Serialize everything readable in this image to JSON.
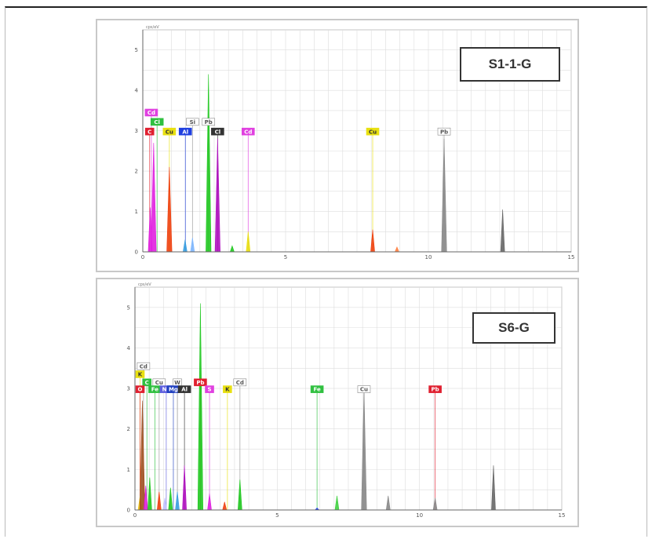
{
  "chart_data": [
    {
      "type": "area",
      "sample_label": "S1-1-G",
      "y_unit_label": "cps/eV",
      "xlim": [
        0,
        15
      ],
      "ylim": [
        0,
        5.5
      ],
      "x_ticks": [
        "0",
        "5",
        "10",
        "15"
      ],
      "y_ticks": [
        "0",
        "1",
        "2",
        "3",
        "4",
        "5"
      ],
      "grid": true,
      "peaks": [
        {
          "x": 0.26,
          "y": 1.1,
          "color": "#e020e0"
        },
        {
          "x": 0.38,
          "y": 2.7,
          "color": "#e020e0"
        },
        {
          "x": 0.93,
          "y": 2.1,
          "color": "#ee4010"
        },
        {
          "x": 1.48,
          "y": 0.3,
          "color": "#3aa0e0"
        },
        {
          "x": 1.74,
          "y": 0.35,
          "color": "#7fb8ff"
        },
        {
          "x": 2.3,
          "y": 4.4,
          "color": "#20c820"
        },
        {
          "x": 2.62,
          "y": 2.8,
          "color": "#b010c0"
        },
        {
          "x": 3.13,
          "y": 0.15,
          "color": "#20c820"
        },
        {
          "x": 3.69,
          "y": 0.5,
          "color": "#e8e010"
        },
        {
          "x": 8.05,
          "y": 0.55,
          "color": "#ee4010"
        },
        {
          "x": 8.9,
          "y": 0.12,
          "color": "#ff8040"
        },
        {
          "x": 10.55,
          "y": 2.8,
          "color": "#888888"
        },
        {
          "x": 12.6,
          "y": 1.05,
          "color": "#666666"
        }
      ],
      "markers": [
        {
          "label": "Cd",
          "x": 0.3,
          "y": 3.45,
          "bg": "#e040e0",
          "fg": "#ffffff"
        },
        {
          "label": "Cl",
          "x": 0.5,
          "y": 3.22,
          "bg": "#30c040",
          "fg": "#ffffff"
        },
        {
          "label": "C",
          "x": 0.24,
          "y": 2.98,
          "bg": "#e02030",
          "fg": "#ffffff"
        },
        {
          "label": "Cu",
          "x": 0.93,
          "y": 2.98,
          "bg": "#e8e010",
          "fg": "#333333"
        },
        {
          "label": "Al",
          "x": 1.49,
          "y": 2.98,
          "bg": "#2040e0",
          "fg": "#ffffff"
        },
        {
          "label": "Si",
          "x": 1.74,
          "y": 3.22,
          "bg": "#ffffff",
          "fg": "#555555"
        },
        {
          "label": "Pb",
          "x": 2.3,
          "y": 3.22,
          "bg": "#ffffff",
          "fg": "#555555"
        },
        {
          "label": "Cl",
          "x": 2.62,
          "y": 2.98,
          "bg": "#333333",
          "fg": "#ffffff"
        },
        {
          "label": "Cd",
          "x": 3.69,
          "y": 2.98,
          "bg": "#e040e0",
          "fg": "#ffffff"
        },
        {
          "label": "Cu",
          "x": 8.05,
          "y": 2.98,
          "bg": "#e8e010",
          "fg": "#333333"
        },
        {
          "label": "Pb",
          "x": 10.55,
          "y": 2.98,
          "bg": "#ffffff",
          "fg": "#555555"
        }
      ]
    },
    {
      "type": "area",
      "sample_label": "S6-G",
      "y_unit_label": "cps/eV",
      "xlim": [
        0,
        15
      ],
      "ylim": [
        0,
        5.5
      ],
      "x_ticks": [
        "0",
        "5",
        "10",
        "15"
      ],
      "y_ticks": [
        "0",
        "1",
        "2",
        "3",
        "4",
        "5"
      ],
      "grid": true,
      "peaks": [
        {
          "x": 0.18,
          "y": 0.35,
          "color": "#e8c010"
        },
        {
          "x": 0.26,
          "y": 2.7,
          "color": "#a05020"
        },
        {
          "x": 0.38,
          "y": 0.6,
          "color": "#e020e0"
        },
        {
          "x": 0.52,
          "y": 0.8,
          "color": "#20c820"
        },
        {
          "x": 0.85,
          "y": 0.45,
          "color": "#ee4010"
        },
        {
          "x": 1.05,
          "y": 0.3,
          "color": "#c0c0ff"
        },
        {
          "x": 1.25,
          "y": 0.55,
          "color": "#20c820"
        },
        {
          "x": 1.49,
          "y": 0.45,
          "color": "#3aa0e0"
        },
        {
          "x": 1.74,
          "y": 1.1,
          "color": "#b010c0"
        },
        {
          "x": 2.3,
          "y": 5.1,
          "color": "#20c820"
        },
        {
          "x": 2.62,
          "y": 0.4,
          "color": "#e020e0"
        },
        {
          "x": 3.15,
          "y": 0.2,
          "color": "#ee4010"
        },
        {
          "x": 3.69,
          "y": 0.75,
          "color": "#20c820"
        },
        {
          "x": 6.4,
          "y": 0.05,
          "color": "#2040e0"
        },
        {
          "x": 7.1,
          "y": 0.35,
          "color": "#40d040"
        },
        {
          "x": 8.05,
          "y": 3.0,
          "color": "#888888"
        },
        {
          "x": 8.9,
          "y": 0.35,
          "color": "#888888"
        },
        {
          "x": 10.55,
          "y": 0.3,
          "color": "#888888"
        },
        {
          "x": 12.6,
          "y": 1.1,
          "color": "#666666"
        }
      ],
      "markers": [
        {
          "label": "Cd",
          "x": 0.3,
          "y": 3.55,
          "bg": "#ffffff",
          "fg": "#555555"
        },
        {
          "label": "K",
          "x": 0.18,
          "y": 3.35,
          "bg": "#e8e010",
          "fg": "#333333"
        },
        {
          "label": "C",
          "x": 0.42,
          "y": 3.15,
          "bg": "#30c040",
          "fg": "#ffffff"
        },
        {
          "label": "Cu",
          "x": 0.85,
          "y": 3.15,
          "bg": "#ffffff",
          "fg": "#555555"
        },
        {
          "label": "W",
          "x": 1.49,
          "y": 3.15,
          "bg": "#ffffff",
          "fg": "#555555"
        },
        {
          "label": "O",
          "x": 0.18,
          "y": 2.98,
          "bg": "#e02030",
          "fg": "#ffffff"
        },
        {
          "label": "Fe",
          "x": 0.7,
          "y": 2.98,
          "bg": "#30c040",
          "fg": "#ffffff"
        },
        {
          "label": "Na",
          "x": 1.1,
          "y": 2.98,
          "bg": "#6060e0",
          "fg": "#ffffff"
        },
        {
          "label": "Mg",
          "x": 1.35,
          "y": 2.98,
          "bg": "#2040c0",
          "fg": "#ffffff"
        },
        {
          "label": "Al",
          "x": 1.74,
          "y": 2.98,
          "bg": "#333333",
          "fg": "#ffffff"
        },
        {
          "label": "Pb",
          "x": 2.3,
          "y": 3.15,
          "bg": "#e02030",
          "fg": "#ffffff"
        },
        {
          "label": "S",
          "x": 2.62,
          "y": 2.98,
          "bg": "#e040e0",
          "fg": "#ffffff"
        },
        {
          "label": "K",
          "x": 3.25,
          "y": 2.98,
          "bg": "#e8e010",
          "fg": "#333333"
        },
        {
          "label": "Cd",
          "x": 3.69,
          "y": 3.15,
          "bg": "#ffffff",
          "fg": "#555555"
        },
        {
          "label": "Fe",
          "x": 6.4,
          "y": 2.98,
          "bg": "#30c040",
          "fg": "#ffffff"
        },
        {
          "label": "Cu",
          "x": 8.05,
          "y": 2.98,
          "bg": "#ffffff",
          "fg": "#555555"
        },
        {
          "label": "Pb",
          "x": 10.55,
          "y": 2.98,
          "bg": "#e02030",
          "fg": "#ffffff"
        }
      ]
    }
  ]
}
